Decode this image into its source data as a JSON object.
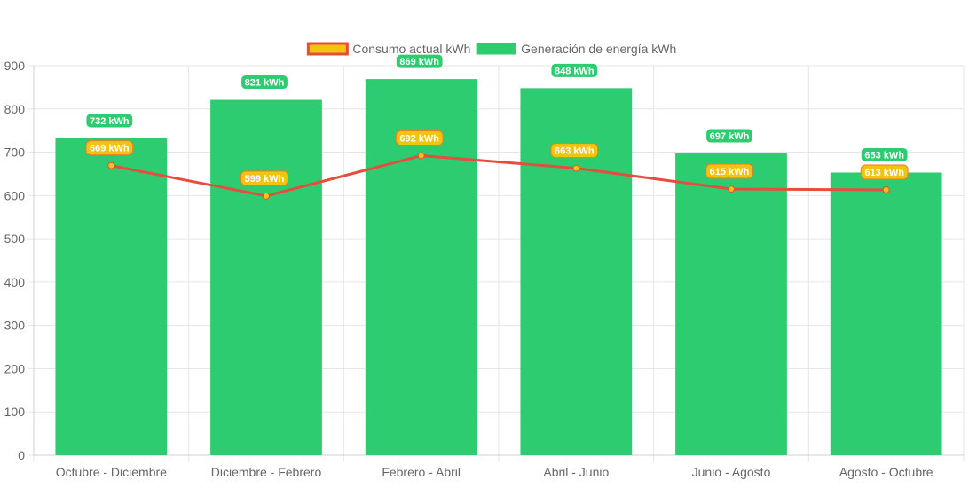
{
  "chart_data": {
    "type": "bar",
    "categories": [
      "Octubre - Diciembre",
      "Diciembre - Febrero",
      "Febrero - Abril",
      "Abril - Junio",
      "Junio - Agosto",
      "Agosto - Octubre"
    ],
    "series": [
      {
        "name": "Generación de energía kWh",
        "type": "bar",
        "values": [
          732,
          821,
          869,
          848,
          697,
          653
        ],
        "color": "#2ecc71"
      },
      {
        "name": "Consumo actual kWh",
        "type": "line",
        "values": [
          669,
          599,
          692,
          663,
          615,
          613
        ],
        "color": "#e74c3c",
        "point_color": "#f1c40f"
      }
    ],
    "data_label_suffix": " kWh",
    "ylim": [
      0,
      900
    ],
    "yticks": [
      0,
      100,
      200,
      300,
      400,
      500,
      600,
      700,
      800,
      900
    ],
    "grid": true,
    "legend_position": "top",
    "title": "",
    "xlabel": "",
    "ylabel": ""
  }
}
